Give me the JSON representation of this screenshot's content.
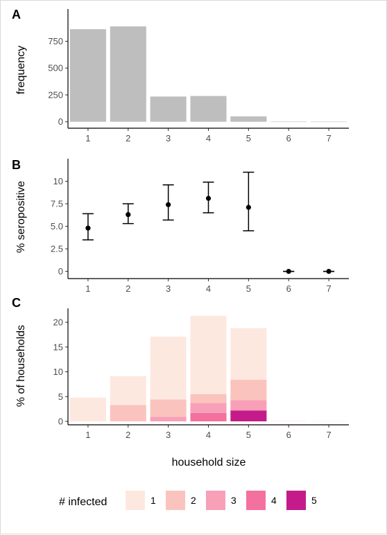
{
  "xlabel": "household size",
  "chart_data": [
    {
      "panel": "A",
      "type": "bar",
      "ylabel": "frequency",
      "categories": [
        "1",
        "2",
        "3",
        "4",
        "5",
        "6",
        "7"
      ],
      "values": [
        862,
        888,
        235,
        240,
        50,
        3,
        1
      ],
      "ylim": [
        -60,
        1050
      ],
      "yticks": [
        0,
        250,
        500,
        750
      ],
      "ytick_labels": [
        "0",
        "250",
        "500",
        "750"
      ],
      "color": "#bebebe"
    },
    {
      "panel": "B",
      "type": "scatter",
      "ylabel": "% seropositive",
      "categories": [
        "1",
        "2",
        "3",
        "4",
        "5",
        "6",
        "7"
      ],
      "values": [
        4.8,
        6.3,
        7.4,
        8.1,
        7.1,
        0,
        0
      ],
      "lower": [
        3.5,
        5.3,
        5.7,
        6.5,
        4.5,
        0,
        0
      ],
      "upper": [
        6.4,
        7.5,
        9.6,
        9.9,
        11.0,
        0,
        0
      ],
      "ylim": [
        -0.8,
        12.5
      ],
      "yticks": [
        0,
        2.5,
        5,
        7.5,
        10
      ],
      "ytick_labels": [
        "0",
        "2.5",
        "5.0",
        "7.5",
        "10"
      ]
    },
    {
      "panel": "C",
      "type": "bar",
      "stacked": true,
      "ylabel": "% of households",
      "categories": [
        "1",
        "2",
        "3",
        "4",
        "5",
        "6",
        "7"
      ],
      "legend_title": "# infected",
      "series": [
        {
          "name": "1",
          "color": "#fde8e0",
          "values": [
            4.8,
            5.8,
            12.7,
            15.8,
            10.4,
            0.1,
            0.04
          ]
        },
        {
          "name": "2",
          "color": "#fbc3bd",
          "values": [
            0,
            3.3,
            3.5,
            1.8,
            4.1,
            0,
            0
          ]
        },
        {
          "name": "3",
          "color": "#f8a0b8",
          "values": [
            0,
            0,
            0.9,
            2.0,
            2.1,
            0,
            0
          ]
        },
        {
          "name": "4",
          "color": "#f4709f",
          "values": [
            0,
            0,
            0,
            1.7,
            0,
            0,
            0
          ]
        },
        {
          "name": "5",
          "color": "#c51b8a",
          "values": [
            0,
            0,
            0,
            0,
            2.2,
            0,
            0
          ]
        }
      ],
      "ylim": [
        -0.7,
        22.8
      ],
      "yticks": [
        0,
        5,
        10,
        15,
        20
      ],
      "ytick_labels": [
        "0",
        "5",
        "10",
        "15",
        "20"
      ]
    }
  ]
}
